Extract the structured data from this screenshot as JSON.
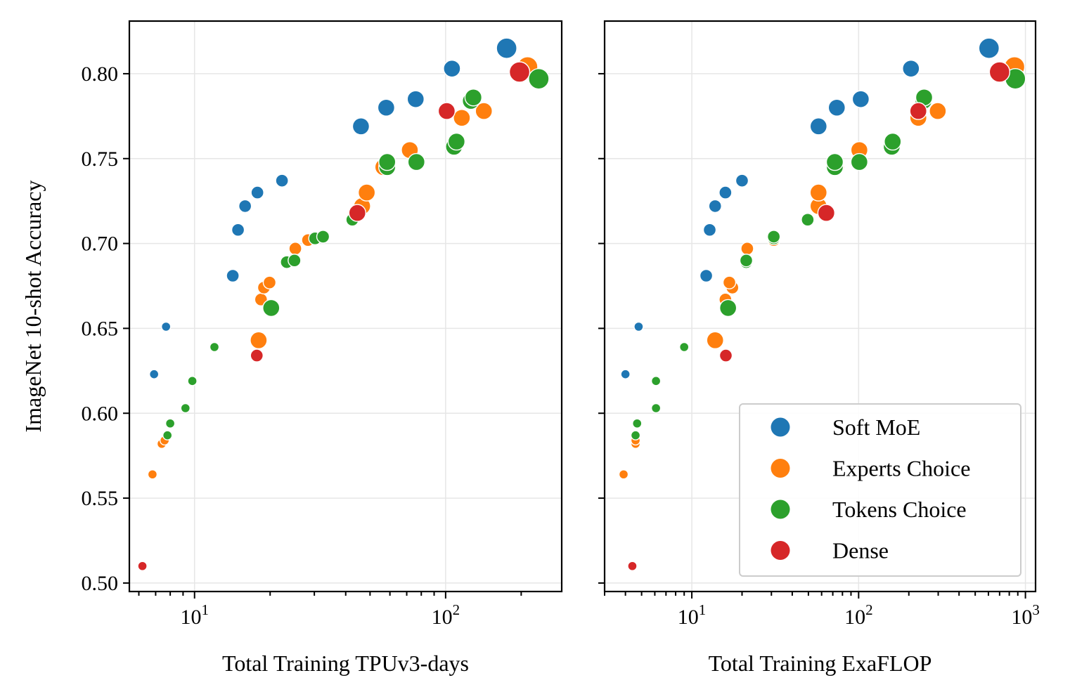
{
  "chart_data": [
    {
      "type": "scatter",
      "xlabel": "Total Training TPUv3-days",
      "ylabel": "ImageNet 10-shot Accuracy",
      "xscale": "log",
      "xlim": [
        5.5,
        290
      ],
      "ylim": [
        0.495,
        0.831
      ],
      "xticks": [
        {
          "value": 10,
          "base": "10",
          "exp": "1"
        },
        {
          "value": 100,
          "base": "10",
          "exp": "2"
        }
      ],
      "yticks": [
        {
          "value": 0.5,
          "label": "0.50"
        },
        {
          "value": 0.55,
          "label": "0.55"
        },
        {
          "value": 0.6,
          "label": "0.60"
        },
        {
          "value": 0.65,
          "label": "0.65"
        },
        {
          "value": 0.7,
          "label": "0.70"
        },
        {
          "value": 0.75,
          "label": "0.75"
        },
        {
          "value": 0.8,
          "label": "0.80"
        }
      ],
      "grid": true,
      "series": [
        {
          "name": "Soft MoE",
          "color": "#1f77b4",
          "points": [
            {
              "x": 7.7,
              "y": 0.651,
              "size": 1
            },
            {
              "x": 6.9,
              "y": 0.623,
              "size": 1
            },
            {
              "x": 14.2,
              "y": 0.681,
              "size": 2
            },
            {
              "x": 14.9,
              "y": 0.708,
              "size": 2
            },
            {
              "x": 15.9,
              "y": 0.722,
              "size": 2
            },
            {
              "x": 17.8,
              "y": 0.73,
              "size": 2
            },
            {
              "x": 22.3,
              "y": 0.737,
              "size": 2
            },
            {
              "x": 46,
              "y": 0.769,
              "size": 3
            },
            {
              "x": 58,
              "y": 0.78,
              "size": 3
            },
            {
              "x": 76,
              "y": 0.785,
              "size": 3
            },
            {
              "x": 106,
              "y": 0.803,
              "size": 3
            },
            {
              "x": 175,
              "y": 0.815,
              "size": 4
            }
          ]
        },
        {
          "name": "Experts Choice",
          "color": "#ff7f0e",
          "points": [
            {
              "x": 6.8,
              "y": 0.564,
              "size": 1
            },
            {
              "x": 7.4,
              "y": 0.582,
              "size": 1
            },
            {
              "x": 7.6,
              "y": 0.584,
              "size": 1
            },
            {
              "x": 18.4,
              "y": 0.667,
              "size": 2
            },
            {
              "x": 18.9,
              "y": 0.674,
              "size": 2
            },
            {
              "x": 19.9,
              "y": 0.677,
              "size": 2
            },
            {
              "x": 18,
              "y": 0.643,
              "size": 3
            },
            {
              "x": 25.2,
              "y": 0.697,
              "size": 2
            },
            {
              "x": 28.3,
              "y": 0.702,
              "size": 2
            },
            {
              "x": 46.5,
              "y": 0.722,
              "size": 3
            },
            {
              "x": 48.5,
              "y": 0.73,
              "size": 3
            },
            {
              "x": 56.5,
              "y": 0.745,
              "size": 3
            },
            {
              "x": 72,
              "y": 0.755,
              "size": 3
            },
            {
              "x": 116,
              "y": 0.774,
              "size": 3
            },
            {
              "x": 142,
              "y": 0.778,
              "size": 3
            },
            {
              "x": 212,
              "y": 0.804,
              "size": 4
            }
          ]
        },
        {
          "name": "Tokens Choice",
          "color": "#2ca02c",
          "points": [
            {
              "x": 7.8,
              "y": 0.587,
              "size": 1
            },
            {
              "x": 8.0,
              "y": 0.594,
              "size": 1
            },
            {
              "x": 9.2,
              "y": 0.603,
              "size": 1
            },
            {
              "x": 9.8,
              "y": 0.619,
              "size": 1
            },
            {
              "x": 12,
              "y": 0.639,
              "size": 1
            },
            {
              "x": 20.2,
              "y": 0.662,
              "size": 3
            },
            {
              "x": 23.3,
              "y": 0.689,
              "size": 2
            },
            {
              "x": 25,
              "y": 0.69,
              "size": 2
            },
            {
              "x": 30.2,
              "y": 0.703,
              "size": 2
            },
            {
              "x": 32.5,
              "y": 0.704,
              "size": 2
            },
            {
              "x": 42.5,
              "y": 0.714,
              "size": 2
            },
            {
              "x": 58.5,
              "y": 0.745,
              "size": 3
            },
            {
              "x": 58.5,
              "y": 0.748,
              "size": 3
            },
            {
              "x": 76.5,
              "y": 0.748,
              "size": 3
            },
            {
              "x": 108,
              "y": 0.757,
              "size": 3
            },
            {
              "x": 110.5,
              "y": 0.76,
              "size": 3
            },
            {
              "x": 126,
              "y": 0.784,
              "size": 3
            },
            {
              "x": 129,
              "y": 0.786,
              "size": 3
            },
            {
              "x": 235,
              "y": 0.797,
              "size": 4
            }
          ]
        },
        {
          "name": "Dense",
          "color": "#d62728",
          "points": [
            {
              "x": 6.2,
              "y": 0.51,
              "size": 1
            },
            {
              "x": 17.7,
              "y": 0.634,
              "size": 2
            },
            {
              "x": 44.5,
              "y": 0.718,
              "size": 3
            },
            {
              "x": 101,
              "y": 0.778,
              "size": 3
            },
            {
              "x": 197,
              "y": 0.801,
              "size": 4
            }
          ]
        }
      ]
    },
    {
      "type": "scatter",
      "xlabel": "Total Training ExaFLOP",
      "ylabel": "",
      "xscale": "log",
      "xlim": [
        3.0,
        1150
      ],
      "ylim": [
        0.495,
        0.831
      ],
      "xticks": [
        {
          "value": 10,
          "base": "10",
          "exp": "1"
        },
        {
          "value": 100,
          "base": "10",
          "exp": "2"
        },
        {
          "value": 1000,
          "base": "10",
          "exp": "3"
        }
      ],
      "grid": true,
      "legend": {
        "position": "lower-right",
        "entries": [
          "Soft MoE",
          "Experts Choice",
          "Tokens Choice",
          "Dense"
        ]
      },
      "series": [
        {
          "name": "Soft MoE",
          "color": "#1f77b4",
          "points": [
            {
              "x": 4.8,
              "y": 0.651,
              "size": 1
            },
            {
              "x": 4.0,
              "y": 0.623,
              "size": 1
            },
            {
              "x": 12.2,
              "y": 0.681,
              "size": 2
            },
            {
              "x": 12.8,
              "y": 0.708,
              "size": 2
            },
            {
              "x": 13.8,
              "y": 0.722,
              "size": 2
            },
            {
              "x": 15.9,
              "y": 0.73,
              "size": 2
            },
            {
              "x": 20,
              "y": 0.737,
              "size": 2
            },
            {
              "x": 57.5,
              "y": 0.769,
              "size": 3
            },
            {
              "x": 74,
              "y": 0.78,
              "size": 3
            },
            {
              "x": 103,
              "y": 0.785,
              "size": 3
            },
            {
              "x": 206,
              "y": 0.803,
              "size": 3
            },
            {
              "x": 605,
              "y": 0.815,
              "size": 4
            }
          ]
        },
        {
          "name": "Experts Choice",
          "color": "#ff7f0e",
          "points": [
            {
              "x": 3.9,
              "y": 0.564,
              "size": 1
            },
            {
              "x": 4.6,
              "y": 0.582,
              "size": 1
            },
            {
              "x": 4.6,
              "y": 0.584,
              "size": 1
            },
            {
              "x": 15.9,
              "y": 0.667,
              "size": 2
            },
            {
              "x": 17.5,
              "y": 0.674,
              "size": 2
            },
            {
              "x": 16.8,
              "y": 0.677,
              "size": 2
            },
            {
              "x": 13.8,
              "y": 0.643,
              "size": 3
            },
            {
              "x": 21.5,
              "y": 0.697,
              "size": 2
            },
            {
              "x": 31,
              "y": 0.702,
              "size": 2
            },
            {
              "x": 57.5,
              "y": 0.722,
              "size": 3
            },
            {
              "x": 57.5,
              "y": 0.73,
              "size": 3
            },
            {
              "x": 73,
              "y": 0.745,
              "size": 3
            },
            {
              "x": 101,
              "y": 0.755,
              "size": 3
            },
            {
              "x": 228,
              "y": 0.774,
              "size": 3
            },
            {
              "x": 298,
              "y": 0.778,
              "size": 3
            },
            {
              "x": 860,
              "y": 0.804,
              "size": 4
            }
          ]
        },
        {
          "name": "Tokens Choice",
          "color": "#2ca02c",
          "points": [
            {
              "x": 4.6,
              "y": 0.587,
              "size": 1
            },
            {
              "x": 4.7,
              "y": 0.594,
              "size": 1
            },
            {
              "x": 6.1,
              "y": 0.603,
              "size": 1
            },
            {
              "x": 6.1,
              "y": 0.619,
              "size": 1
            },
            {
              "x": 9.0,
              "y": 0.639,
              "size": 1
            },
            {
              "x": 16.5,
              "y": 0.662,
              "size": 3
            },
            {
              "x": 21.2,
              "y": 0.689,
              "size": 2
            },
            {
              "x": 21.2,
              "y": 0.69,
              "size": 2
            },
            {
              "x": 31,
              "y": 0.703,
              "size": 2
            },
            {
              "x": 31,
              "y": 0.704,
              "size": 2
            },
            {
              "x": 49.5,
              "y": 0.714,
              "size": 2
            },
            {
              "x": 72,
              "y": 0.745,
              "size": 3
            },
            {
              "x": 72,
              "y": 0.748,
              "size": 3
            },
            {
              "x": 101,
              "y": 0.748,
              "size": 3
            },
            {
              "x": 158,
              "y": 0.757,
              "size": 3
            },
            {
              "x": 160,
              "y": 0.76,
              "size": 3
            },
            {
              "x": 245,
              "y": 0.784,
              "size": 3
            },
            {
              "x": 247,
              "y": 0.786,
              "size": 3
            },
            {
              "x": 870,
              "y": 0.797,
              "size": 4
            }
          ]
        },
        {
          "name": "Dense",
          "color": "#d62728",
          "points": [
            {
              "x": 4.4,
              "y": 0.51,
              "size": 1
            },
            {
              "x": 16,
              "y": 0.634,
              "size": 2
            },
            {
              "x": 64,
              "y": 0.718,
              "size": 3
            },
            {
              "x": 228,
              "y": 0.778,
              "size": 3
            },
            {
              "x": 700,
              "y": 0.801,
              "size": 4
            }
          ]
        }
      ]
    }
  ]
}
